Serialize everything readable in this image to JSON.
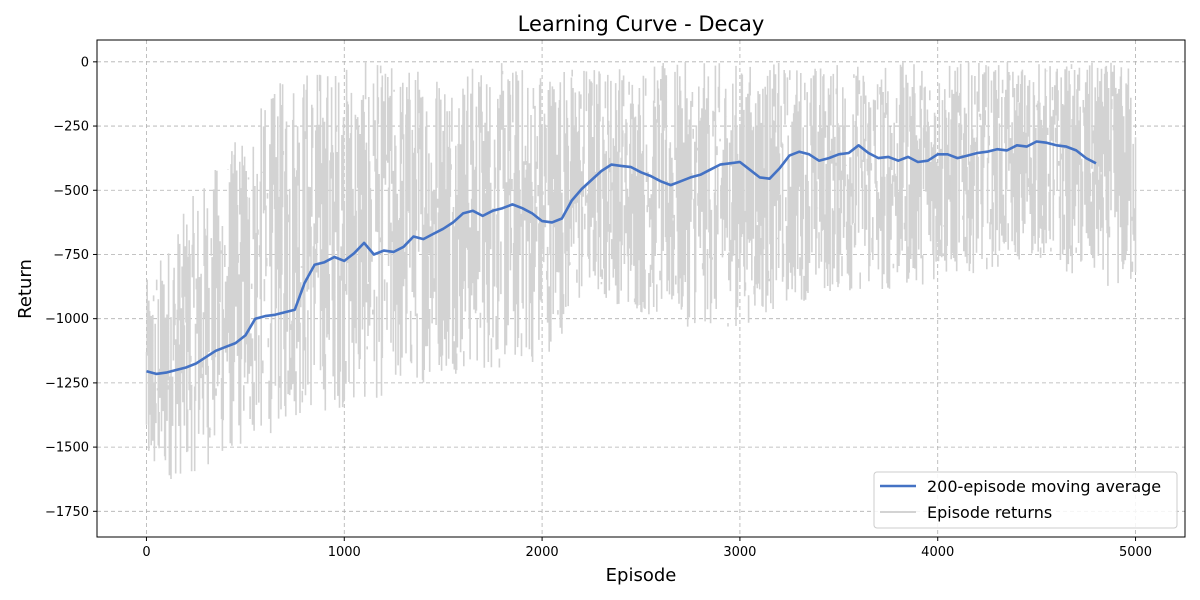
{
  "chart_data": {
    "type": "line",
    "title": "Learning Curve - Decay",
    "xlabel": "Episode",
    "ylabel": "Return",
    "xlim": [
      -250,
      5250
    ],
    "ylim": [
      -1850,
      85
    ],
    "xticks": [
      0,
      1000,
      2000,
      3000,
      4000,
      5000
    ],
    "xtick_labels": [
      "0",
      "1000",
      "2000",
      "3000",
      "4000",
      "5000"
    ],
    "yticks": [
      0,
      -250,
      -500,
      -750,
      -1000,
      -1250,
      -1500,
      -1750
    ],
    "ytick_labels": [
      "0",
      "−250",
      "−500",
      "−750",
      "−1000",
      "−1250",
      "−1500",
      "−1750"
    ],
    "grid": true,
    "legend_position": "lower-right",
    "series": [
      {
        "name": "200-episode moving average",
        "color": "#4472c4",
        "x": [
          0,
          50,
          100,
          150,
          200,
          250,
          300,
          350,
          400,
          450,
          500,
          550,
          600,
          650,
          700,
          750,
          800,
          850,
          900,
          950,
          1000,
          1050,
          1100,
          1150,
          1200,
          1250,
          1300,
          1350,
          1400,
          1450,
          1500,
          1550,
          1600,
          1650,
          1700,
          1750,
          1800,
          1850,
          1900,
          1950,
          2000,
          2050,
          2100,
          2150,
          2200,
          2250,
          2300,
          2350,
          2400,
          2450,
          2500,
          2550,
          2600,
          2650,
          2700,
          2750,
          2800,
          2850,
          2900,
          2950,
          3000,
          3050,
          3100,
          3150,
          3200,
          3250,
          3300,
          3350,
          3400,
          3450,
          3500,
          3550,
          3600,
          3650,
          3700,
          3750,
          3800,
          3850,
          3900,
          3950,
          4000,
          4050,
          4100,
          4150,
          4200,
          4250,
          4300,
          4350,
          4400,
          4450,
          4500,
          4550,
          4600,
          4650,
          4700,
          4750,
          4800
        ],
        "values": [
          -1205,
          -1215,
          -1210,
          -1200,
          -1190,
          -1175,
          -1150,
          -1125,
          -1110,
          -1095,
          -1065,
          -1000,
          -990,
          -985,
          -975,
          -965,
          -860,
          -790,
          -780,
          -760,
          -775,
          -745,
          -705,
          -750,
          -735,
          -740,
          -720,
          -680,
          -690,
          -670,
          -650,
          -625,
          -590,
          -580,
          -600,
          -580,
          -570,
          -555,
          -570,
          -590,
          -620,
          -625,
          -610,
          -540,
          -495,
          -460,
          -425,
          -400,
          -405,
          -410,
          -430,
          -445,
          -465,
          -480,
          -465,
          -450,
          -440,
          -420,
          -400,
          -395,
          -390,
          -420,
          -450,
          -455,
          -415,
          -365,
          -350,
          -360,
          -385,
          -375,
          -360,
          -355,
          -325,
          -355,
          -375,
          -370,
          -385,
          -370,
          -390,
          -385,
          -360,
          -360,
          -375,
          -365,
          -355,
          -350,
          -340,
          -345,
          -325,
          -330,
          -310,
          -315,
          -325,
          -330,
          -345,
          -375,
          -395
        ]
      },
      {
        "name": "Episode returns",
        "color": "#d3d3d3",
        "x_start": 0,
        "x_end": 5000,
        "band_x": [
          0,
          250,
          500,
          750,
          1000,
          1250,
          1500,
          1750,
          2000,
          2250,
          2500,
          2750,
          3000,
          3250,
          3500,
          3750,
          4000,
          4250,
          4500,
          4750,
          5000
        ],
        "band_lo": [
          -1750,
          -1720,
          -1650,
          -1550,
          -1500,
          -1450,
          -1350,
          -1350,
          -1300,
          -1000,
          -1100,
          -1150,
          -1150,
          -1050,
          -1000,
          -1000,
          -950,
          -900,
          -850,
          -950,
          -1000
        ],
        "band_hi": [
          -850,
          -500,
          -250,
          0,
          0,
          0,
          0,
          0,
          0,
          0,
          0,
          0,
          0,
          0,
          0,
          0,
          0,
          0,
          0,
          0,
          0
        ]
      }
    ]
  }
}
